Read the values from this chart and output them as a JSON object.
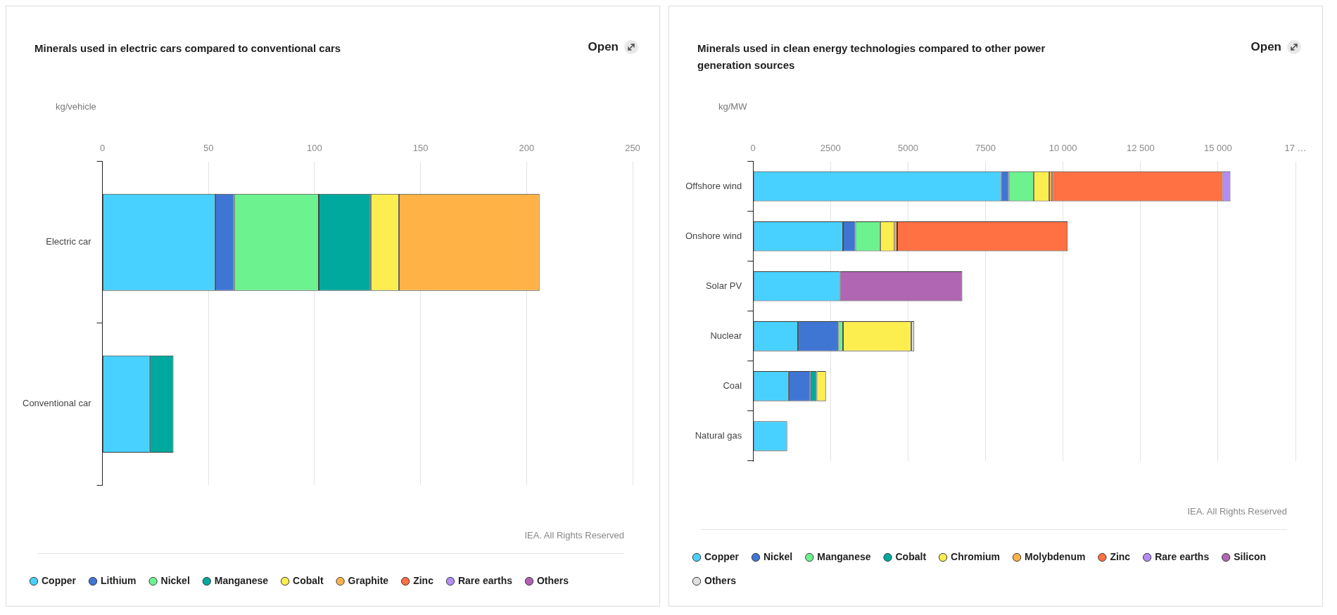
{
  "chart_data": [
    {
      "type": "bar",
      "orientation": "horizontal",
      "stacked": true,
      "title": "Minerals used in electric cars compared to conventional cars",
      "xlabel": "kg/vehicle",
      "annotations": [
        "Open",
        "IEA. All Rights Reserved"
      ],
      "categories": [
        "Electric car",
        "Conventional car"
      ],
      "series": [
        {
          "name": "Copper",
          "color": "#48d1ff",
          "values": [
            53.2,
            22.3
          ]
        },
        {
          "name": "Lithium",
          "color": "#3f76d4",
          "values": [
            8.9,
            null
          ]
        },
        {
          "name": "Nickel",
          "color": "#6cf28f",
          "values": [
            39.9,
            null
          ]
        },
        {
          "name": "Manganese",
          "color": "#00a99d",
          "values": [
            24.5,
            11.2
          ]
        },
        {
          "name": "Cobalt",
          "color": "#fdee4f",
          "values": [
            13.3,
            null
          ]
        },
        {
          "name": "Graphite",
          "color": "#ffb347",
          "values": [
            66.3,
            null
          ]
        },
        {
          "name": "Zinc",
          "color": "#ff7043",
          "values": [
            null,
            null
          ]
        },
        {
          "name": "Rare earths",
          "color": "#b58cf5",
          "values": [
            null,
            null
          ]
        },
        {
          "name": "Others",
          "color": "#b061b5",
          "values": [
            null,
            null
          ]
        }
      ],
      "xlim": [
        0,
        250
      ],
      "xticks": [
        0,
        50,
        100,
        150,
        200,
        250
      ],
      "grid": "x",
      "legend": "bottom left"
    },
    {
      "type": "bar",
      "orientation": "horizontal",
      "stacked": true,
      "title": "Minerals used in clean energy technologies compared to other power generation sources",
      "xlabel": "kg/MW",
      "annotations": [
        "Open",
        "IEA. All Rights Reserved"
      ],
      "categories": [
        "Offshore wind",
        "Onshore wind",
        "Solar PV",
        "Nuclear",
        "Coal",
        "Natural gas"
      ],
      "series": [
        {
          "name": "Copper",
          "color": "#48d1ff",
          "values": [
            8000,
            2900,
            2800,
            1450,
            1150,
            1100
          ]
        },
        {
          "name": "Nickel",
          "color": "#3f76d4",
          "values": [
            250,
            400,
            null,
            1300,
            700,
            null
          ]
        },
        {
          "name": "Manganese",
          "color": "#6cf28f",
          "values": [
            800,
            800,
            null,
            150,
            null,
            null
          ]
        },
        {
          "name": "Cobalt",
          "color": "#00a99d",
          "values": [
            null,
            null,
            null,
            null,
            200,
            null
          ]
        },
        {
          "name": "Chromium",
          "color": "#fdee4f",
          "values": [
            500,
            450,
            null,
            2200,
            300,
            null
          ]
        },
        {
          "name": "Molybdenum",
          "color": "#ffb347",
          "values": [
            100,
            100,
            null,
            null,
            null,
            null
          ]
        },
        {
          "name": "Zinc",
          "color": "#ff7043",
          "values": [
            5500,
            5500,
            null,
            null,
            null,
            null
          ]
        },
        {
          "name": "Rare earths",
          "color": "#b58cf5",
          "values": [
            250,
            null,
            null,
            null,
            null,
            null
          ]
        },
        {
          "name": "Silicon",
          "color": "#b066b3",
          "values": [
            null,
            null,
            3950,
            null,
            null,
            null
          ]
        },
        {
          "name": "Others",
          "color": "#e0e0e0",
          "values": [
            null,
            null,
            null,
            100,
            null,
            null
          ]
        }
      ],
      "xlim": [
        0,
        17500
      ],
      "xticks": [
        0,
        2500,
        5000,
        7500,
        {
          "value": 10000,
          "label": "10 000"
        },
        {
          "value": 12500,
          "label": "12 500"
        },
        {
          "value": 15000,
          "label": "15 000"
        },
        {
          "value": 17500,
          "label": "17 …"
        }
      ],
      "grid": "x",
      "legend": "bottom left"
    }
  ]
}
